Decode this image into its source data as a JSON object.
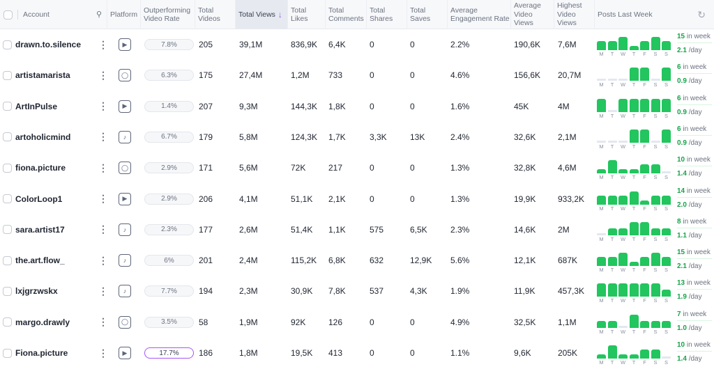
{
  "header": {
    "account": "Account",
    "platform": "Platform",
    "outperforming": "Outperforming Video Rate",
    "total_videos": "Total Videos",
    "total_views": "Total Views",
    "total_likes": "Total Likes",
    "total_comments": "Total Comments",
    "total_shares": "Total Shares",
    "total_saves": "Total Saves",
    "avg_engagement": "Average Engagement Rate",
    "avg_video_views": "Average Video Views",
    "highest_video_views": "Highest Video Views",
    "posts_last_week": "Posts Last Week",
    "sort_icon": "arrow-down-icon",
    "refresh_icon": "refresh-icon"
  },
  "days": [
    "M",
    "T",
    "W",
    "T",
    "F",
    "S",
    "S"
  ],
  "in_week_label": "in week",
  "per_day_label": "/day",
  "accent": "#22c55e",
  "rows": [
    {
      "account": "drawn.to.silence",
      "platform": "youtube",
      "rate": "7.8%",
      "videos": "205",
      "views": "39,1M",
      "likes": "836,9K",
      "comments": "6,4K",
      "shares": "0",
      "saves": "0",
      "eng": "2.2%",
      "avg": "190,6K",
      "high": "7,6M",
      "week": "15",
      "day": "2.1",
      "posts": [
        2,
        2,
        3,
        1,
        2,
        3,
        2
      ]
    },
    {
      "account": "artistamarista",
      "platform": "instagram",
      "rate": "6.3%",
      "videos": "175",
      "views": "27,4M",
      "likes": "1,2M",
      "comments": "733",
      "shares": "0",
      "saves": "0",
      "eng": "4.6%",
      "avg": "156,6K",
      "high": "20,7M",
      "week": "6",
      "day": "0.9",
      "posts": [
        0,
        0,
        0,
        2,
        2,
        0,
        2
      ]
    },
    {
      "account": "ArtInPulse",
      "platform": "youtube",
      "rate": "1.4%",
      "videos": "207",
      "views": "9,3M",
      "likes": "144,3K",
      "comments": "1,8K",
      "shares": "0",
      "saves": "0",
      "eng": "1.6%",
      "avg": "45K",
      "high": "4M",
      "week": "6",
      "day": "0.9",
      "posts": [
        1,
        0,
        1,
        1,
        1,
        1,
        1
      ]
    },
    {
      "account": "artoholicmind",
      "platform": "tiktok",
      "rate": "6.7%",
      "videos": "179",
      "views": "5,8M",
      "likes": "124,3K",
      "comments": "1,7K",
      "shares": "3,3K",
      "saves": "13K",
      "eng": "2.4%",
      "avg": "32,6K",
      "high": "2,1M",
      "week": "6",
      "day": "0.9",
      "posts": [
        0,
        0,
        0,
        2,
        2,
        0,
        2
      ]
    },
    {
      "account": "fiona.picture",
      "platform": "instagram",
      "rate": "2.9%",
      "videos": "171",
      "views": "5,6M",
      "likes": "72K",
      "comments": "217",
      "shares": "0",
      "saves": "0",
      "eng": "1.3%",
      "avg": "32,8K",
      "high": "4,6M",
      "week": "10",
      "day": "1.4",
      "posts": [
        1,
        3,
        1,
        1,
        2,
        2,
        0
      ]
    },
    {
      "account": "ColorLoop1",
      "platform": "youtube",
      "rate": "2.9%",
      "videos": "206",
      "views": "4,1M",
      "likes": "51,1K",
      "comments": "2,1K",
      "shares": "0",
      "saves": "0",
      "eng": "1.3%",
      "avg": "19,9K",
      "high": "933,2K",
      "week": "14",
      "day": "2.0",
      "posts": [
        2,
        2,
        2,
        3,
        1,
        2,
        2
      ]
    },
    {
      "account": "sara.artist17",
      "platform": "tiktok",
      "rate": "2.3%",
      "videos": "177",
      "views": "2,6M",
      "likes": "51,4K",
      "comments": "1,1K",
      "shares": "575",
      "saves": "6,5K",
      "eng": "2.3%",
      "avg": "14,6K",
      "high": "2M",
      "week": "8",
      "day": "1.1",
      "posts": [
        0,
        1,
        1,
        2,
        2,
        1,
        1
      ]
    },
    {
      "account": "the.art.flow_",
      "platform": "tiktok",
      "rate": "6%",
      "videos": "201",
      "views": "2,4M",
      "likes": "115,2K",
      "comments": "6,8K",
      "shares": "632",
      "saves": "12,9K",
      "eng": "5.6%",
      "avg": "12,1K",
      "high": "687K",
      "week": "15",
      "day": "2.1",
      "posts": [
        2,
        2,
        3,
        1,
        2,
        3,
        2
      ]
    },
    {
      "account": "lxjgrzwskx",
      "platform": "tiktok",
      "rate": "7.7%",
      "videos": "194",
      "views": "2,3M",
      "likes": "30,9K",
      "comments": "7,8K",
      "shares": "537",
      "saves": "4,3K",
      "eng": "1.9%",
      "avg": "11,9K",
      "high": "457,3K",
      "week": "13",
      "day": "1.9",
      "posts": [
        2,
        2,
        2,
        2,
        2,
        2,
        1
      ]
    },
    {
      "account": "margo.drawly",
      "platform": "instagram",
      "rate": "3.5%",
      "videos": "58",
      "views": "1,9M",
      "likes": "92K",
      "comments": "126",
      "shares": "0",
      "saves": "0",
      "eng": "4.9%",
      "avg": "32,5K",
      "high": "1,1M",
      "week": "7",
      "day": "1.0",
      "posts": [
        1,
        1,
        0,
        2,
        1,
        1,
        1
      ]
    },
    {
      "account": "Fiona.picture",
      "platform": "youtube",
      "rate": "17.7%",
      "videos": "186",
      "views": "1,8M",
      "likes": "19,5K",
      "comments": "413",
      "shares": "0",
      "saves": "0",
      "eng": "1.1%",
      "avg": "9,6K",
      "high": "205K",
      "week": "10",
      "day": "1.4",
      "posts": [
        1,
        3,
        1,
        1,
        2,
        2,
        0
      ],
      "highlight": true
    }
  ]
}
